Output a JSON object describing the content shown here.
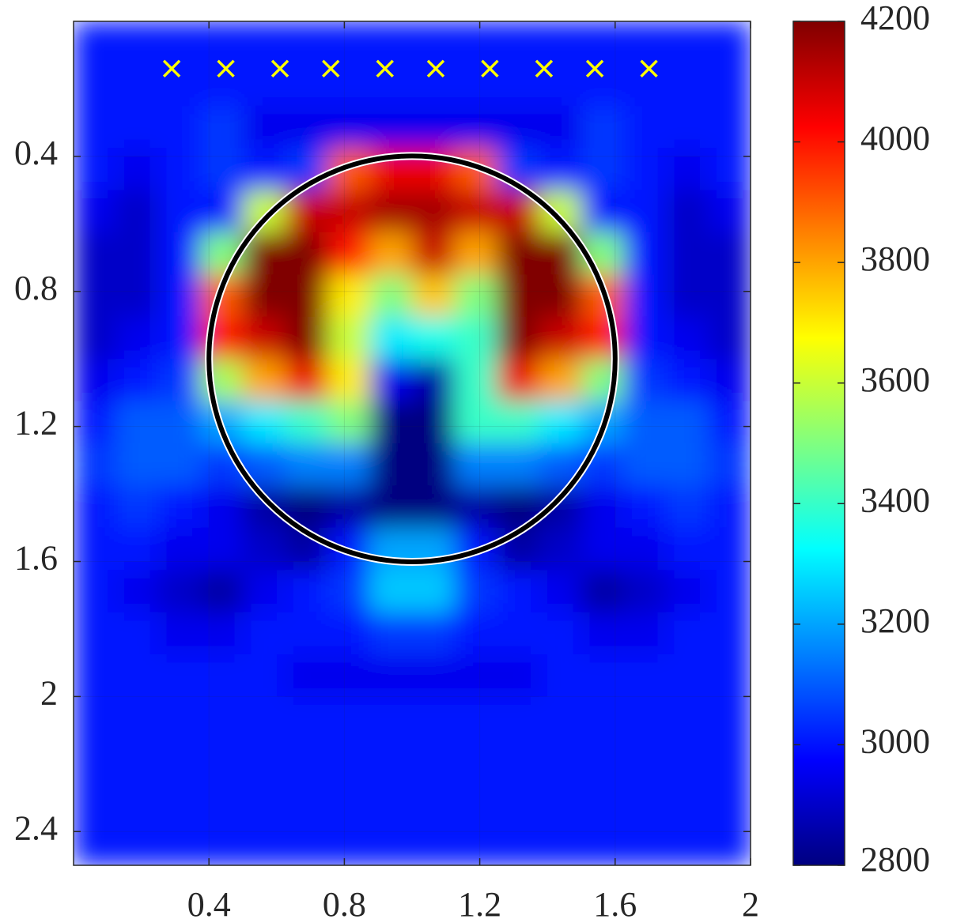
{
  "chart_data": {
    "type": "heatmap",
    "colormap": "jet",
    "grid": true,
    "xlim": [
      0,
      2
    ],
    "ylim": [
      0,
      2.5
    ],
    "y_reversed": true,
    "xticks": [
      0.4,
      0.8,
      1.2,
      1.6,
      2
    ],
    "yticks": [
      0.4,
      0.8,
      1.2,
      1.6,
      2,
      2.4
    ],
    "clim": [
      2800,
      4200
    ],
    "cticks": [
      2800,
      3000,
      3200,
      3400,
      3600,
      3800,
      4000,
      4200
    ],
    "z": [
      [
        3000,
        3000,
        3000,
        3000,
        3000,
        3000,
        3000,
        3000,
        3000,
        3000,
        3000,
        3000,
        3000,
        3000,
        3000,
        3000
      ],
      [
        3000,
        3000,
        3000,
        3000,
        3000,
        3000,
        3000,
        3000,
        3000,
        3000,
        3000,
        3000,
        3000,
        3000,
        3000,
        3000
      ],
      [
        3000,
        3000,
        3000,
        3050,
        2950,
        2950,
        2950,
        2950,
        2950,
        2950,
        2950,
        2950,
        3050,
        3000,
        3000,
        3000
      ],
      [
        3000,
        2950,
        3000,
        3050,
        3000,
        3050,
        3900,
        4050,
        4050,
        3900,
        3050,
        3000,
        3050,
        3000,
        2950,
        3000
      ],
      [
        2950,
        2900,
        3000,
        3000,
        3600,
        4100,
        4100,
        4150,
        4150,
        4100,
        4100,
        3600,
        3000,
        3000,
        2900,
        2950
      ],
      [
        2900,
        2900,
        3000,
        3500,
        4200,
        4200,
        4000,
        3800,
        4100,
        3800,
        4200,
        4200,
        3500,
        3000,
        2900,
        2900
      ],
      [
        2900,
        2900,
        3000,
        3900,
        4200,
        4200,
        3700,
        3500,
        3750,
        3500,
        4200,
        4200,
        3900,
        3000,
        2900,
        2900
      ],
      [
        2900,
        2950,
        3000,
        4000,
        4100,
        4200,
        3600,
        3300,
        3350,
        3400,
        4200,
        4100,
        4000,
        3000,
        2950,
        2900
      ],
      [
        2950,
        3000,
        3050,
        3550,
        3800,
        4050,
        3700,
        2950,
        2850,
        3400,
        4050,
        3800,
        3500,
        3050,
        3000,
        2950
      ],
      [
        3000,
        3100,
        3100,
        3200,
        3300,
        3400,
        3500,
        2800,
        2800,
        3400,
        3400,
        3300,
        3200,
        3100,
        3100,
        3000
      ],
      [
        3050,
        3100,
        3100,
        3050,
        3100,
        3150,
        3150,
        2800,
        2800,
        3150,
        3150,
        3100,
        3050,
        3100,
        3100,
        3050
      ],
      [
        3000,
        3050,
        3000,
        2950,
        2850,
        2800,
        2850,
        2800,
        2800,
        2850,
        2800,
        2850,
        2950,
        3000,
        3050,
        3000
      ],
      [
        3000,
        3000,
        2950,
        2950,
        2900,
        2850,
        3000,
        3200,
        3200,
        3000,
        2850,
        2900,
        2950,
        2950,
        3000,
        3000
      ],
      [
        3000,
        2950,
        2900,
        2850,
        2950,
        3000,
        3050,
        3250,
        3250,
        3050,
        3000,
        2950,
        2850,
        2900,
        2950,
        3000
      ],
      [
        3000,
        3000,
        2950,
        2950,
        3000,
        3000,
        3000,
        3050,
        3050,
        3000,
        3000,
        3000,
        2950,
        2950,
        3000,
        3000
      ],
      [
        3000,
        3000,
        3000,
        3000,
        3000,
        2950,
        2950,
        2950,
        2950,
        2950,
        2950,
        3000,
        3000,
        3000,
        3000,
        3000
      ],
      [
        3000,
        3000,
        3000,
        3000,
        3000,
        3000,
        3000,
        3000,
        3000,
        3000,
        3000,
        3000,
        3000,
        3000,
        3000,
        3000
      ],
      [
        3000,
        3000,
        3000,
        3000,
        3000,
        3000,
        3000,
        3000,
        3000,
        3000,
        3000,
        3000,
        3000,
        3000,
        3000,
        3000
      ],
      [
        3000,
        3000,
        3000,
        3000,
        3000,
        3000,
        3000,
        3000,
        3000,
        3000,
        3000,
        3000,
        3000,
        3000,
        3000,
        3000
      ],
      [
        3000,
        3000,
        3000,
        3000,
        3000,
        3000,
        3000,
        3000,
        3000,
        3000,
        3000,
        3000,
        3000,
        3000,
        3000,
        3000
      ]
    ],
    "circle": {
      "cx": 1,
      "cy": 1,
      "r": 0.6
    },
    "markers": {
      "color": "#ffff00",
      "x": [
        0.29,
        0.45,
        0.61,
        0.76,
        0.92,
        1.07,
        1.23,
        1.39,
        1.54,
        1.7
      ],
      "y": [
        0.14,
        0.14,
        0.14,
        0.14,
        0.14,
        0.14,
        0.14,
        0.14,
        0.14,
        0.14
      ]
    }
  }
}
